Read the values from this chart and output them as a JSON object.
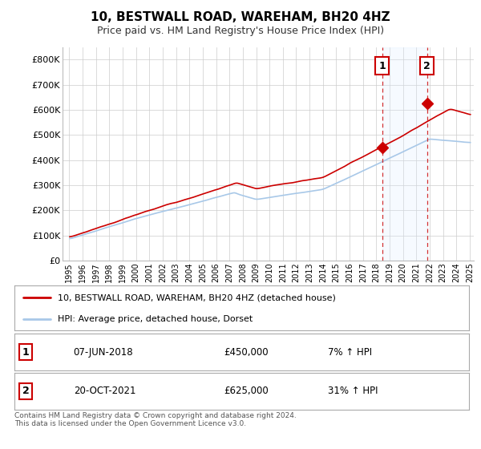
{
  "title": "10, BESTWALL ROAD, WAREHAM, BH20 4HZ",
  "subtitle": "Price paid vs. HM Land Registry's House Price Index (HPI)",
  "sale1_date": "07-JUN-2018",
  "sale1_price": 450000,
  "sale1_hpi": "7% ↑ HPI",
  "sale2_date": "20-OCT-2021",
  "sale2_price": 625000,
  "sale2_hpi": "31% ↑ HPI",
  "sale1_year": 2018.44,
  "sale2_year": 2021.8,
  "legend_line1": "10, BESTWALL ROAD, WAREHAM, BH20 4HZ (detached house)",
  "legend_line2": "HPI: Average price, detached house, Dorset",
  "footnote": "Contains HM Land Registry data © Crown copyright and database right 2024.\nThis data is licensed under the Open Government Licence v3.0.",
  "hpi_color": "#a8c8e8",
  "price_color": "#cc0000",
  "vline_color": "#cc0000",
  "shade_color": "#ddeeff",
  "background_color": "#ffffff",
  "grid_color": "#cccccc",
  "ylim": [
    0,
    850000
  ],
  "yticks": [
    0,
    100000,
    200000,
    300000,
    400000,
    500000,
    600000,
    700000,
    800000
  ],
  "ytick_labels": [
    "£0",
    "£100K",
    "£200K",
    "£300K",
    "£400K",
    "£500K",
    "£600K",
    "£700K",
    "£800K"
  ],
  "xstart": 1995,
  "xend": 2025
}
